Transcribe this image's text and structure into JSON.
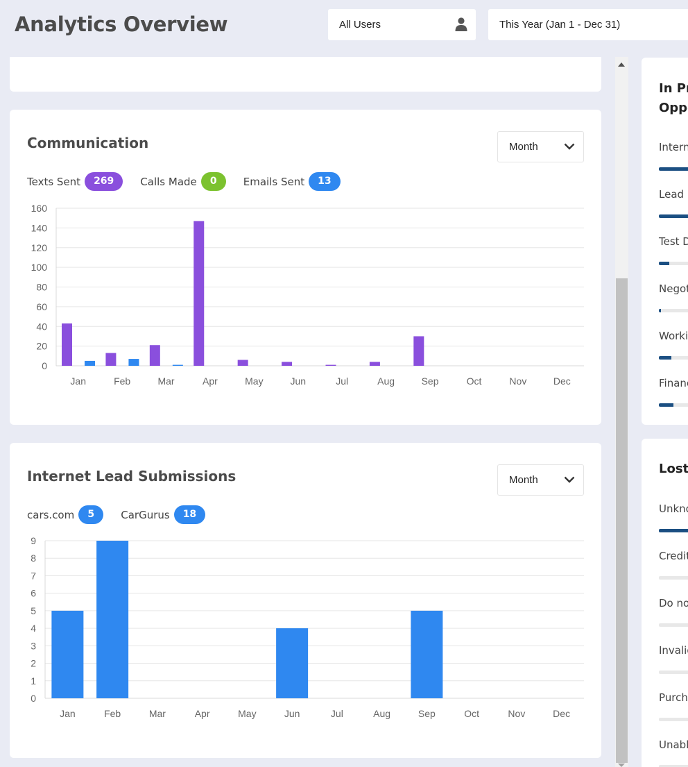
{
  "header": {
    "title": "Analytics Overview",
    "user_filter": "All Users",
    "date_filter": "This Year (Jan 1 - Dec 31)"
  },
  "communication": {
    "title": "Communication",
    "period_select": "Month",
    "legend": [
      {
        "label": "Texts Sent",
        "count": "269",
        "color": "#8a4fdd"
      },
      {
        "label": "Calls Made",
        "count": "0",
        "color": "#7cc22f"
      },
      {
        "label": "Emails Sent",
        "count": "13",
        "color": "#2f88f0"
      }
    ]
  },
  "leads": {
    "title": "Internet Lead Submissions",
    "period_select": "Month",
    "legend": [
      {
        "label": "cars.com",
        "count": "5",
        "color": "#2f88f0"
      },
      {
        "label": "CarGurus",
        "count": "18",
        "color": "#2f88f0"
      }
    ]
  },
  "chart_data": [
    {
      "type": "bar",
      "categories": [
        "Jan",
        "Feb",
        "Mar",
        "Apr",
        "May",
        "Jun",
        "Jul",
        "Aug",
        "Sep",
        "Oct",
        "Nov",
        "Dec"
      ],
      "series": [
        {
          "name": "Texts Sent",
          "color": "#8a4fdd",
          "values": [
            43,
            13,
            21,
            147,
            6,
            4,
            1,
            4,
            30,
            0,
            0,
            0
          ]
        },
        {
          "name": "Emails Sent",
          "color": "#2f88f0",
          "values": [
            5,
            7,
            1,
            0,
            0,
            0,
            0,
            0,
            0,
            0,
            0,
            0
          ]
        },
        {
          "name": "Calls Made",
          "color": "#7cc22f",
          "values": [
            0,
            0,
            0,
            0,
            0,
            0,
            0,
            0,
            0,
            0,
            0,
            0
          ]
        }
      ],
      "yticks": [
        0,
        20,
        40,
        60,
        80,
        100,
        120,
        140,
        160
      ],
      "ylim": [
        0,
        160
      ],
      "grid": true
    },
    {
      "type": "bar",
      "categories": [
        "Jan",
        "Feb",
        "Mar",
        "Apr",
        "May",
        "Jun",
        "Jul",
        "Aug",
        "Sep",
        "Oct",
        "Nov",
        "Dec"
      ],
      "series": [
        {
          "name": "Leads",
          "color": "#2f88f0",
          "values": [
            5,
            9,
            0,
            0,
            0,
            4,
            0,
            0,
            5,
            0,
            0,
            0
          ]
        }
      ],
      "yticks": [
        0,
        1,
        2,
        3,
        4,
        5,
        6,
        7,
        8,
        9
      ],
      "ylim": [
        0,
        9
      ],
      "grid": true
    }
  ],
  "side_progress": {
    "title_line1": "In Pro",
    "title_line2": "Oppo",
    "items": [
      {
        "label": "Intern",
        "fill": 1.0
      },
      {
        "label": "Lead I",
        "fill": 1.0
      },
      {
        "label": "Test D",
        "fill": 0.25
      },
      {
        "label": "Negot",
        "fill": 0.05
      },
      {
        "label": "Worki",
        "fill": 0.3
      },
      {
        "label": "Financ",
        "fill": 0.35
      }
    ]
  },
  "side_lost": {
    "title": "Lost",
    "items": [
      {
        "label": "Unkno",
        "fill": 1.0
      },
      {
        "label": "Credit",
        "fill": 0
      },
      {
        "label": "Do no",
        "fill": 0
      },
      {
        "label": "Invalid",
        "fill": 0
      },
      {
        "label": "Purch",
        "fill": 0
      },
      {
        "label": "Unabl",
        "fill": 0
      }
    ]
  }
}
